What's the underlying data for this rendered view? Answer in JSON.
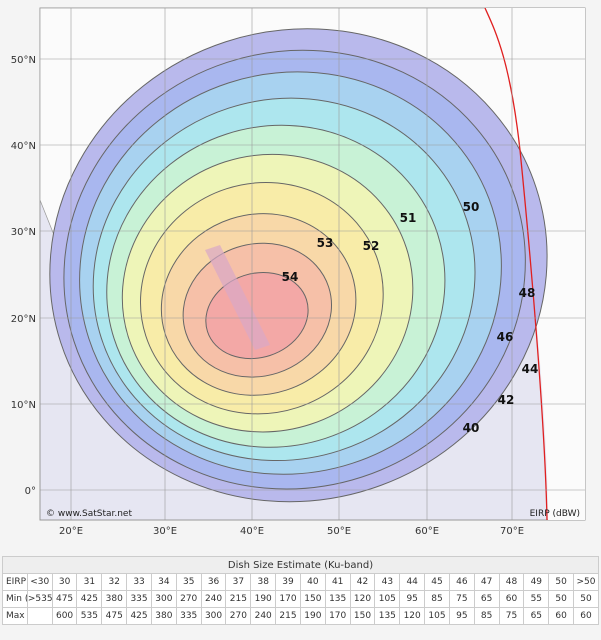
{
  "map": {
    "lat_labels": [
      "50°N",
      "40°N",
      "30°N",
      "20°N",
      "10°N",
      "0°"
    ],
    "lon_labels": [
      "20°E",
      "30°E",
      "40°E",
      "50°E",
      "60°E",
      "70°E"
    ],
    "contour_labels": [
      "54",
      "53",
      "52",
      "51",
      "50",
      "48",
      "46",
      "44",
      "42",
      "40"
    ],
    "credit": "© www.SatStar.net",
    "unit_label": "EIRP (dBW)"
  },
  "table": {
    "title": "Dish Size Estimate (Ku-band)",
    "rows": [
      [
        "EIRP (dBW)",
        "<30",
        "30",
        "31",
        "32",
        "33",
        "34",
        "35",
        "36",
        "37",
        "38",
        "39",
        "40",
        "41",
        "42",
        "43",
        "44",
        "45",
        "46",
        "47",
        "48",
        "49",
        "50",
        ">50"
      ],
      [
        "Min (cm)",
        ">535",
        "475",
        "425",
        "380",
        "335",
        "300",
        "270",
        "240",
        "215",
        "190",
        "170",
        "150",
        "135",
        "120",
        "105",
        "95",
        "85",
        "75",
        "65",
        "60",
        "55",
        "50",
        "50"
      ],
      [
        "Max (cm)",
        null,
        "600",
        "535",
        "475",
        "425",
        "380",
        "335",
        "300",
        "270",
        "240",
        "215",
        "190",
        "170",
        "150",
        "135",
        "120",
        "105",
        "95",
        "85",
        "75",
        "65",
        "60",
        "60"
      ]
    ]
  }
}
